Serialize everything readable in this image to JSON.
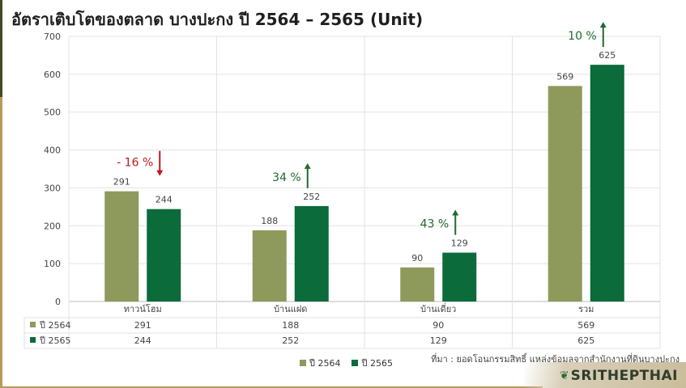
{
  "title": "อัตราเติบโตของตลาด บางปะกง ปี 2564 – 2565 (Unit)",
  "source": "ที่มา : ยอดโอนกรรมสิทธิ์ แหล่งข้อมูลจากสำนักงานที่ดินบางปะกง",
  "logo_text": "SRITHEPTHAI",
  "colors": {
    "series_2564": "#8d9a5b",
    "series_2565": "#0b6b3a",
    "decrease": "#c0161c",
    "increase": "#1f6b2f"
  },
  "chart_data": {
    "type": "bar",
    "categories": [
      "ทาวน์โฮม",
      "บ้านแฝด",
      "บ้านเดี่ยว",
      "รวม"
    ],
    "series": [
      {
        "name": "ปี 2564",
        "values": [
          291,
          188,
          90,
          569
        ]
      },
      {
        "name": "ปี 2565",
        "values": [
          244,
          252,
          129,
          625
        ]
      }
    ],
    "ylim": [
      0,
      700
    ],
    "yticks": [
      0,
      100,
      200,
      300,
      400,
      500,
      600,
      700
    ],
    "grid": true,
    "legend": "bottom",
    "annotations": [
      {
        "category": "ทาวน์โฮม",
        "text": "- 16 %",
        "direction": "down"
      },
      {
        "category": "บ้านแฝด",
        "text": "34 %",
        "direction": "up"
      },
      {
        "category": "บ้านเดี่ยว",
        "text": "43 %",
        "direction": "up"
      },
      {
        "category": "รวม",
        "text": "10 %",
        "direction": "up"
      }
    ]
  }
}
